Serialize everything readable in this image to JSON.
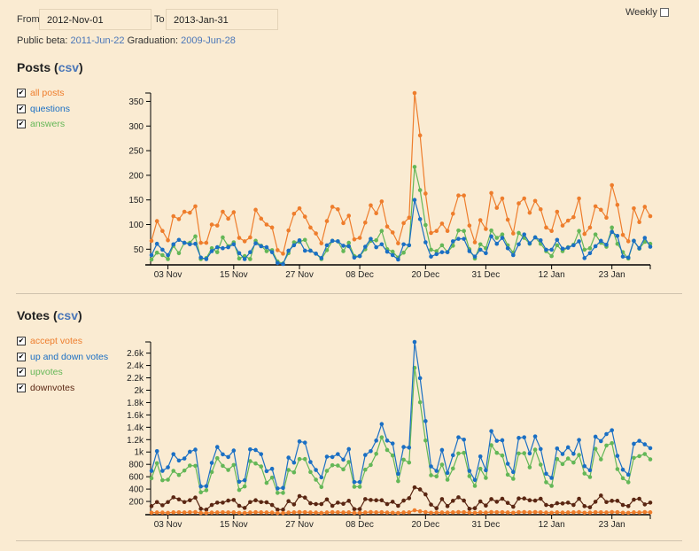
{
  "filters": {
    "from_label": "From",
    "from_value": "2012-Nov-01",
    "to_label": "To",
    "to_value": "2013-Jan-31",
    "weekly_label": "Weekly",
    "weekly_checked": false,
    "public_beta_label": "Public beta:",
    "public_beta_date": "2011-Jun-22",
    "graduation_label": "Graduation:",
    "graduation_date": "2009-Jun-28"
  },
  "colors": {
    "background": "#faebd2",
    "orange": "#ee7d2c",
    "blue": "#1a6fc4",
    "green": "#64b757",
    "brown": "#5a2612",
    "link": "#4a76b8"
  },
  "posts": {
    "title": "Posts (",
    "csv": "csv",
    "close": ")",
    "legend": [
      {
        "label": "all posts",
        "color": "#ee7d2c",
        "checked": true
      },
      {
        "label": "questions",
        "color": "#1a6fc4",
        "checked": true
      },
      {
        "label": "answers",
        "color": "#64b757",
        "checked": true
      }
    ]
  },
  "votes": {
    "title": "Votes (",
    "csv": "csv",
    "close": ")",
    "legend": [
      {
        "label": "accept votes",
        "color": "#ee7d2c",
        "checked": true
      },
      {
        "label": "up and down votes",
        "color": "#1a6fc4",
        "checked": true
      },
      {
        "label": "upvotes",
        "color": "#64b757",
        "checked": true
      },
      {
        "label": "downvotes",
        "color": "#5a2612",
        "checked": true
      }
    ]
  },
  "chart_data": [
    {
      "type": "line",
      "title": "Posts",
      "ylim": [
        20,
        367
      ],
      "y_ticks": [
        "50",
        "100",
        "150",
        "200",
        "250",
        "300",
        "350"
      ],
      "x_ticks": [
        "03 Nov",
        "15 Nov",
        "27 Nov",
        "08 Dec",
        "20 Dec",
        "31 Dec",
        "12 Jan",
        "23 Jan"
      ],
      "series": [
        {
          "name": "all posts",
          "color": "#ee7d2c",
          "values": [
            67,
            107,
            87,
            68,
            117,
            111,
            126,
            124,
            137,
            63,
            63,
            100,
            98,
            126,
            112,
            125,
            73,
            66,
            74,
            130,
            112,
            100,
            94,
            48,
            41,
            88,
            122,
            133,
            116,
            94,
            82,
            62,
            107,
            136,
            131,
            103,
            118,
            70,
            73,
            104,
            139,
            123,
            147,
            96,
            84,
            62,
            103,
            114,
            367,
            281,
            163,
            83,
            87,
            102,
            87,
            122,
            159,
            159,
            98,
            64,
            109,
            91,
            164,
            134,
            153,
            110,
            82,
            143,
            153,
            124,
            148,
            131,
            94,
            87,
            126,
            98,
            108,
            115,
            153,
            81,
            94,
            137,
            130,
            114,
            180,
            140,
            79,
            66,
            133,
            105,
            136,
            117
          ]
        },
        {
          "name": "questions",
          "color": "#1a6fc4",
          "values": [
            38,
            61,
            49,
            38,
            60,
            69,
            63,
            60,
            61,
            33,
            30,
            46,
            54,
            52,
            54,
            60,
            42,
            30,
            44,
            62,
            56,
            54,
            44,
            22,
            20,
            47,
            58,
            68,
            47,
            47,
            41,
            32,
            58,
            67,
            66,
            57,
            56,
            33,
            36,
            55,
            71,
            54,
            60,
            45,
            38,
            29,
            60,
            58,
            150,
            111,
            64,
            35,
            40,
            44,
            44,
            66,
            71,
            71,
            46,
            35,
            49,
            42,
            76,
            61,
            73,
            52,
            38,
            60,
            80,
            62,
            74,
            68,
            49,
            49,
            69,
            51,
            53,
            58,
            66,
            32,
            42,
            56,
            67,
            59,
            85,
            77,
            35,
            33,
            67,
            52,
            73,
            55
          ]
        },
        {
          "name": "answers",
          "color": "#64b757",
          "values": [
            29,
            43,
            38,
            30,
            57,
            42,
            63,
            63,
            76,
            30,
            32,
            52,
            44,
            74,
            56,
            64,
            31,
            36,
            30,
            67,
            57,
            46,
            48,
            25,
            21,
            42,
            64,
            65,
            69,
            47,
            41,
            30,
            48,
            67,
            66,
            46,
            63,
            36,
            36,
            50,
            67,
            68,
            87,
            50,
            45,
            33,
            43,
            58,
            217,
            170,
            99,
            49,
            46,
            58,
            44,
            57,
            88,
            87,
            50,
            31,
            60,
            52,
            88,
            73,
            80,
            58,
            43,
            83,
            73,
            61,
            74,
            61,
            46,
            36,
            58,
            46,
            54,
            59,
            87,
            49,
            52,
            80,
            63,
            55,
            94,
            61,
            44,
            31,
            67,
            51,
            65,
            61
          ]
        }
      ]
    },
    {
      "type": "line",
      "title": "Votes",
      "ylim": [
        0,
        2781
      ],
      "y_ticks": [
        "200",
        "400",
        "600",
        "800",
        "1k",
        "1.2k",
        "1.4k",
        "1.6k",
        "1.8k",
        "2k",
        "2.2k",
        "2.4k",
        "2.6k"
      ],
      "x_ticks": [
        "03 Nov",
        "15 Nov",
        "27 Nov",
        "08 Dec",
        "20 Dec",
        "31 Dec",
        "12 Jan",
        "23 Jan"
      ],
      "series": [
        {
          "name": "accept votes",
          "color": "#ee7d2c",
          "values": [
            18,
            22,
            20,
            16,
            24,
            25,
            22,
            26,
            28,
            15,
            14,
            20,
            22,
            25,
            23,
            24,
            16,
            14,
            22,
            26,
            24,
            22,
            20,
            12,
            12,
            20,
            24,
            28,
            26,
            22,
            20,
            15,
            22,
            26,
            25,
            22,
            24,
            15,
            16,
            22,
            28,
            24,
            26,
            20,
            18,
            14,
            22,
            24,
            57,
            40,
            28,
            18,
            20,
            22,
            20,
            24,
            28,
            27,
            20,
            16,
            24,
            20,
            28,
            26,
            27,
            22,
            18,
            26,
            28,
            24,
            28,
            25,
            20,
            18,
            24,
            20,
            22,
            24,
            28,
            18,
            20,
            26,
            25,
            22,
            28,
            26,
            18,
            16,
            24,
            22,
            28,
            24
          ]
        },
        {
          "name": "up and down votes",
          "color": "#1a6fc4",
          "values": [
            695,
            1014,
            695,
            752,
            966,
            862,
            895,
            1004,
            1038,
            443,
            448,
            824,
            1081,
            962,
            919,
            1024,
            519,
            543,
            1043,
            1033,
            966,
            690,
            728,
            410,
            419,
            909,
            828,
            1171,
            1152,
            838,
            709,
            590,
            924,
            919,
            966,
            876,
            1047,
            514,
            514,
            952,
            1014,
            1185,
            1452,
            1185,
            1138,
            647,
            1081,
            1071,
            2781,
            2195,
            1500,
            767,
            695,
            1033,
            662,
            948,
            1238,
            1200,
            695,
            548,
            928,
            705,
            1338,
            1181,
            1190,
            810,
            676,
            1228,
            1238,
            976,
            1252,
            1048,
            648,
            581,
            1057,
            967,
            1076,
            971,
            1195,
            771,
            705,
            1248,
            1176,
            1290,
            1352,
            938,
            714,
            633,
            1133,
            1181,
            1124,
            1062
          ]
        },
        {
          "name": "upvotes",
          "color": "#64b757",
          "values": [
            576,
            819,
            543,
            552,
            695,
            628,
            700,
            781,
            776,
            348,
            381,
            676,
            900,
            776,
            709,
            790,
            386,
            443,
            852,
            814,
            766,
            500,
            586,
            338,
            338,
            709,
            671,
            886,
            886,
            676,
            552,
            433,
            695,
            786,
            781,
            719,
            838,
            438,
            438,
            714,
            790,
            971,
            1238,
            1033,
            943,
            528,
            876,
            829,
            2362,
            1805,
            1186,
            624,
            605,
            795,
            552,
            733,
            976,
            986,
            610,
            452,
            729,
            581,
            1110,
            986,
            943,
            633,
            567,
            976,
            981,
            752,
            1038,
            795,
            510,
            452,
            886,
            805,
            895,
            829,
            952,
            652,
            595,
            1052,
            881,
            1105,
            1143,
            724,
            576,
            510,
            905,
            933,
            967,
            881
          ]
        },
        {
          "name": "downvotes",
          "color": "#5a2612",
          "values": [
            124,
            190,
            138,
            190,
            267,
            233,
            190,
            219,
            262,
            81,
            67,
            143,
            181,
            181,
            214,
            224,
            129,
            95,
            190,
            219,
            190,
            186,
            143,
            67,
            67,
            205,
            152,
            286,
            262,
            171,
            157,
            157,
            233,
            129,
            181,
            162,
            210,
            76,
            76,
            238,
            224,
            219,
            219,
            157,
            195,
            129,
            214,
            252,
            428,
            395,
            314,
            148,
            90,
            238,
            124,
            210,
            267,
            214,
            81,
            90,
            200,
            133,
            238,
            195,
            243,
            176,
            114,
            248,
            248,
            219,
            214,
            243,
            143,
            129,
            171,
            167,
            181,
            143,
            243,
            124,
            105,
            195,
            295,
            190,
            210,
            210,
            143,
            124,
            229,
            243,
            152,
            181
          ]
        }
      ]
    }
  ]
}
